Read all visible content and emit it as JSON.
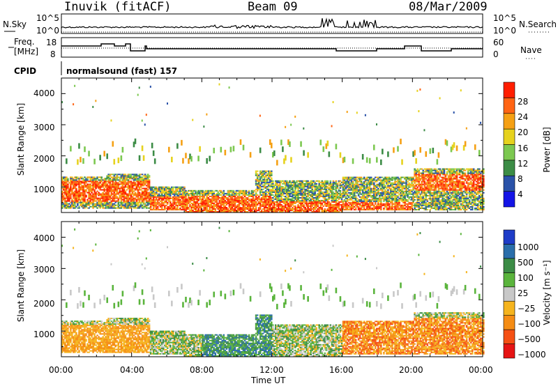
{
  "header": {
    "station": "Inuvik (fitACF)",
    "beam": "Beam 09",
    "date": "08/Mar/2009"
  },
  "param_panels": {
    "nsky_label": "N.Sky",
    "nsearch_label": "N.Search",
    "nsky_ticks": [
      "10^5",
      "10^0"
    ],
    "nsearch_ticks": [
      "10^5",
      "10^0"
    ],
    "freq_label_line1": "Freq.",
    "freq_label_line2": "[MHz]",
    "freq_ticks": [
      "18",
      "8"
    ],
    "nave_label": "Nave",
    "nave_ticks": [
      "60",
      "0"
    ],
    "cpid_label": "CPID",
    "cpid_value": "normalsound (fast) 157"
  },
  "chart_data": [
    {
      "type": "heatmap",
      "name": "Power",
      "ylabel": "Slant Range [km]",
      "y_ticks": [
        "4000",
        "3000",
        "2000",
        "1000"
      ],
      "ylim_km": [
        180,
        4500
      ],
      "colorbar": {
        "label": "Power [dB]",
        "ticks": [
          "28",
          "24",
          "20",
          "16",
          "12",
          "8",
          "4"
        ],
        "colors": [
          "#1414e6",
          "#2a52a8",
          "#3c8c46",
          "#7cc850",
          "#e6d21e",
          "#f5a014",
          "#ff6414",
          "#ff1e00"
        ]
      },
      "description_regions": [
        {
          "time_h": [
            0,
            5
          ],
          "range_km": [
            500,
            1200
          ],
          "level": "high"
        },
        {
          "time_h": [
            5,
            12
          ],
          "range_km": [
            250,
            700
          ],
          "level": "high"
        },
        {
          "time_h": [
            12,
            20
          ],
          "range_km": [
            250,
            900
          ],
          "level": "medium"
        },
        {
          "time_h": [
            20,
            24
          ],
          "range_km": [
            900,
            1400
          ],
          "level": "high"
        }
      ]
    },
    {
      "type": "heatmap",
      "name": "Velocity",
      "ylabel": "Slant Range [km]",
      "y_ticks": [
        "4000",
        "3000",
        "2000",
        "1000"
      ],
      "ylim_km": [
        180,
        4500
      ],
      "colorbar": {
        "label": "Velocity [m s⁻¹]",
        "ticks": [
          "1000",
          "500",
          "100",
          "25",
          "−25",
          "−100",
          "−500",
          "−1000"
        ],
        "colors": [
          "#1e3cc8",
          "#2a6eaa",
          "#3c8c46",
          "#5ab43c",
          "#c8c8c8",
          "#f5b41e",
          "#f58c14",
          "#f55014",
          "#e61414"
        ]
      },
      "x_ticks": [
        "00:00",
        "04:00",
        "08:00",
        "12:00",
        "16:00",
        "20:00",
        "00:00"
      ],
      "xlabel": "Time UT"
    }
  ]
}
